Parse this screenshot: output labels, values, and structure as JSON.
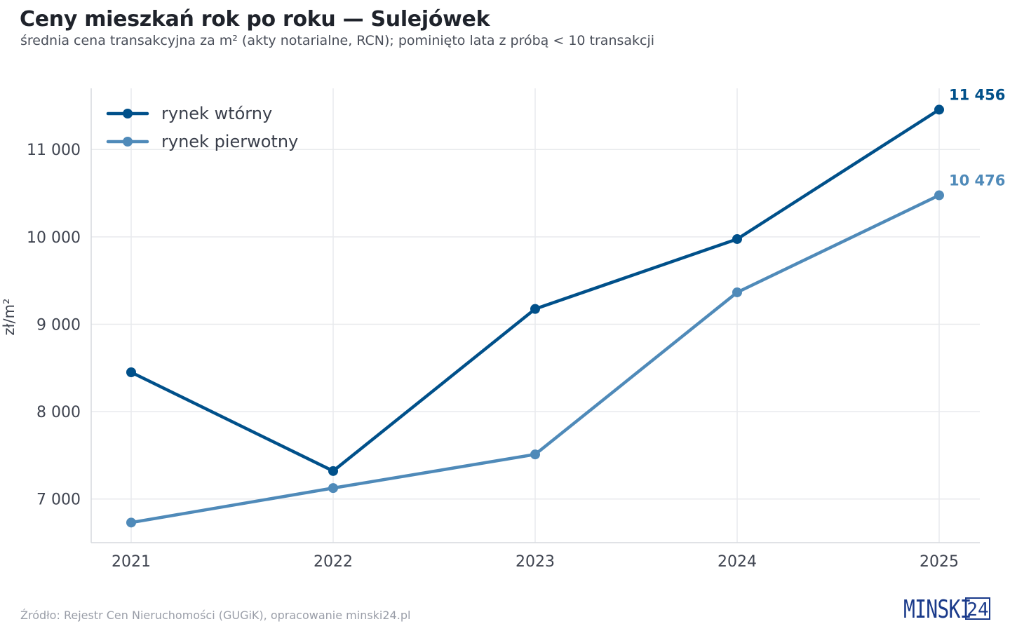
{
  "header": {
    "title": "Ceny mieszkań rok po roku — Sulejówek",
    "subtitle": "średnia cena transakcyjna za m² (akty notarialne, RCN); pominięto lata z próbą < 10 transakcji"
  },
  "chart_data": {
    "type": "line",
    "x": [
      "2021",
      "2022",
      "2023",
      "2024",
      "2025"
    ],
    "ylabel": "zł/m²",
    "ylim": [
      6500,
      11700
    ],
    "yticks": [
      7000,
      8000,
      9000,
      10000,
      11000
    ],
    "ytick_labels": [
      "7 000",
      "8 000",
      "9 000",
      "10 000",
      "11 000"
    ],
    "grid": true,
    "legend_position": "top-left",
    "series": [
      {
        "name": "rynek wtórny",
        "values": [
          8450,
          7320,
          9175,
          9975,
          11456
        ],
        "color": "#00508a",
        "end_label": "11 456"
      },
      {
        "name": "rynek pierwotny",
        "values": [
          6730,
          7125,
          7510,
          9365,
          10476
        ],
        "color": "#4f8ab9",
        "end_label": "10 476"
      }
    ]
  },
  "footer": {
    "source": "Źródło: Rejestr Cen Nieruchomości (GUGiK), opracowanie minski24.pl",
    "logo_text": "MINSKI",
    "logo_number": "24"
  }
}
